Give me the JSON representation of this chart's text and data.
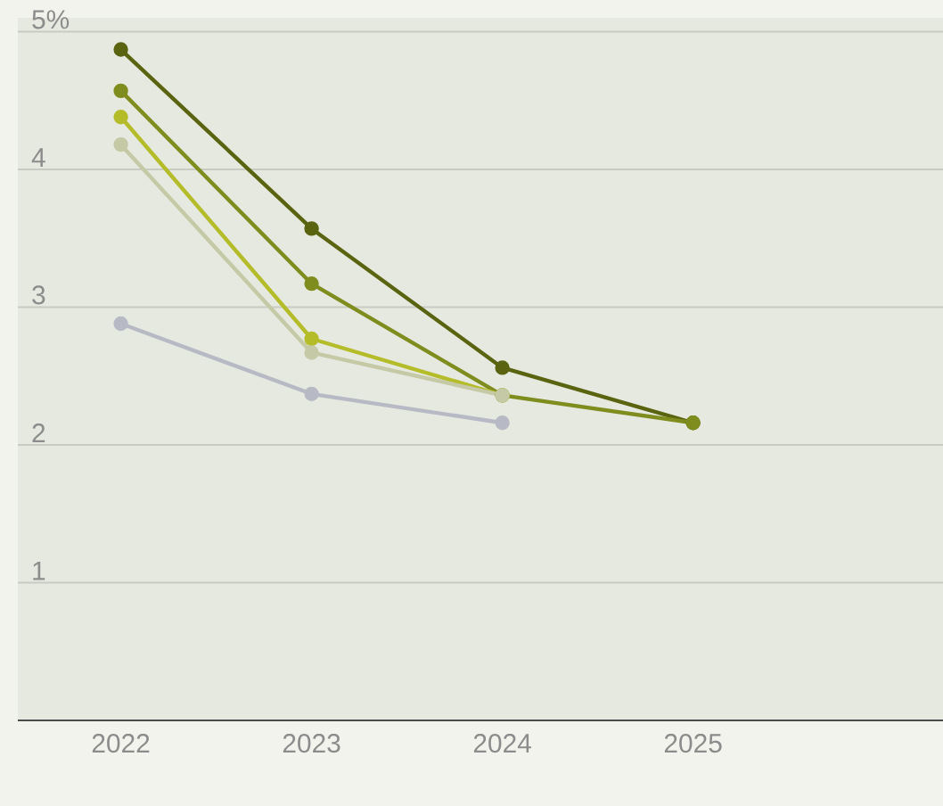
{
  "chart_data": {
    "type": "line",
    "categories": [
      "2022",
      "2023",
      "2024",
      "2025"
    ],
    "series": [
      {
        "color": "#5a6410",
        "values": [
          4.87,
          3.57,
          2.56,
          2.16
        ]
      },
      {
        "color": "#7f8c1e",
        "values": [
          4.57,
          3.17,
          2.36,
          2.16
        ]
      },
      {
        "color": "#b4bc2a",
        "values": [
          4.38,
          2.77,
          2.36,
          null
        ]
      },
      {
        "color": "#c5c9a5",
        "values": [
          4.18,
          2.67,
          2.36,
          null
        ]
      },
      {
        "color": "#b7b9c4",
        "values": [
          2.88,
          2.37,
          2.16,
          null
        ]
      }
    ],
    "ylim": [
      0,
      5.1
    ],
    "yticks": [
      1,
      2,
      3,
      4,
      {
        "value": 5,
        "label": "5%"
      }
    ],
    "grid": "y",
    "marker": "circle",
    "line_style": "solid"
  }
}
